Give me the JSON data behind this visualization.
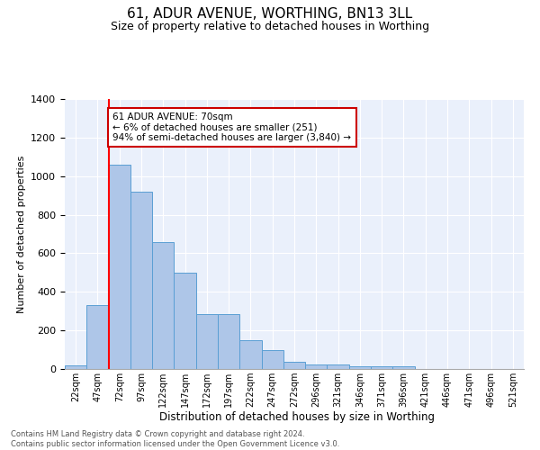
{
  "title": "61, ADUR AVENUE, WORTHING, BN13 3LL",
  "subtitle": "Size of property relative to detached houses in Worthing",
  "xlabel": "Distribution of detached houses by size in Worthing",
  "ylabel": "Number of detached properties",
  "categories": [
    "22sqm",
    "47sqm",
    "72sqm",
    "97sqm",
    "122sqm",
    "147sqm",
    "172sqm",
    "197sqm",
    "222sqm",
    "247sqm",
    "272sqm",
    "296sqm",
    "321sqm",
    "346sqm",
    "371sqm",
    "396sqm",
    "421sqm",
    "446sqm",
    "471sqm",
    "496sqm",
    "521sqm"
  ],
  "values": [
    20,
    330,
    1060,
    920,
    660,
    500,
    285,
    285,
    150,
    100,
    38,
    25,
    25,
    15,
    12,
    12,
    0,
    0,
    0,
    0,
    0
  ],
  "bar_color": "#aec6e8",
  "bar_edge_color": "#5a9fd4",
  "red_line_x": 2,
  "annotation_line1": "61 ADUR AVENUE: 70sqm",
  "annotation_line2": "← 6% of detached houses are smaller (251)",
  "annotation_line3": "94% of semi-detached houses are larger (3,840) →",
  "annotation_box_color": "#ffffff",
  "annotation_box_edge": "#cc0000",
  "ylim": [
    0,
    1400
  ],
  "yticks": [
    0,
    200,
    400,
    600,
    800,
    1000,
    1200,
    1400
  ],
  "bg_color": "#eaf0fb",
  "footer": "Contains HM Land Registry data © Crown copyright and database right 2024.\nContains public sector information licensed under the Open Government Licence v3.0.",
  "title_fontsize": 11,
  "subtitle_fontsize": 9
}
